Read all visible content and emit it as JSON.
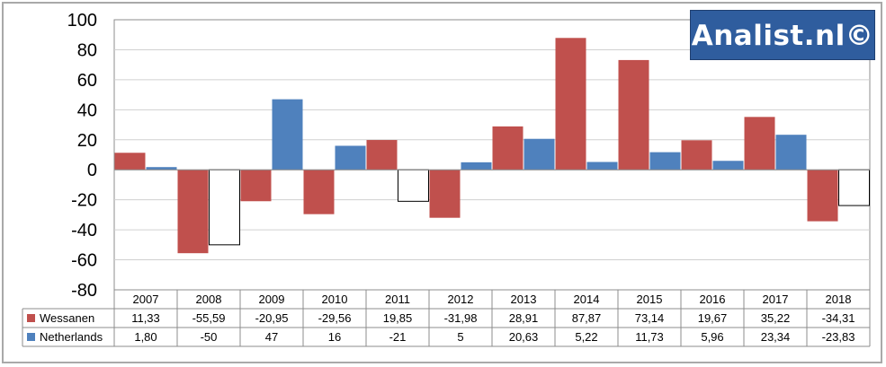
{
  "chart_data": {
    "type": "bar",
    "categories": [
      "2007",
      "2008",
      "2009",
      "2010",
      "2011",
      "2012",
      "2013",
      "2014",
      "2015",
      "2016",
      "2017",
      "2018"
    ],
    "series": [
      {
        "name": "Wessanen",
        "color": "#c0504d",
        "values": [
          11.33,
          -55.59,
          -20.95,
          -29.56,
          19.85,
          -31.98,
          28.91,
          87.87,
          73.14,
          19.67,
          35.22,
          -34.31
        ],
        "labels": [
          "11,33",
          "-55,59",
          "-20,95",
          "-29,56",
          "19,85",
          "-31,98",
          "28,91",
          "87,87",
          "73,14",
          "19,67",
          "35,22",
          "-34,31"
        ]
      },
      {
        "name": "Netherlands",
        "color": "#4f81bd",
        "negative_fill": "#ffffff",
        "values": [
          1.8,
          -50,
          47,
          16,
          -21,
          5,
          20.63,
          5.22,
          11.73,
          5.96,
          23.34,
          -23.83
        ],
        "labels": [
          "1,80",
          "-50",
          "47",
          "16",
          "-21",
          "5",
          "20,63",
          "5,22",
          "11,73",
          "5,96",
          "23,34",
          "-23,83"
        ]
      }
    ],
    "ylim": [
      -80,
      100
    ],
    "yticks": [
      100,
      80,
      60,
      40,
      20,
      0,
      -20,
      -40,
      -60,
      -80
    ],
    "grid": true,
    "legend": "data-table"
  },
  "watermark": {
    "text": "Analist.nl©",
    "color": "#2f5d9e"
  }
}
